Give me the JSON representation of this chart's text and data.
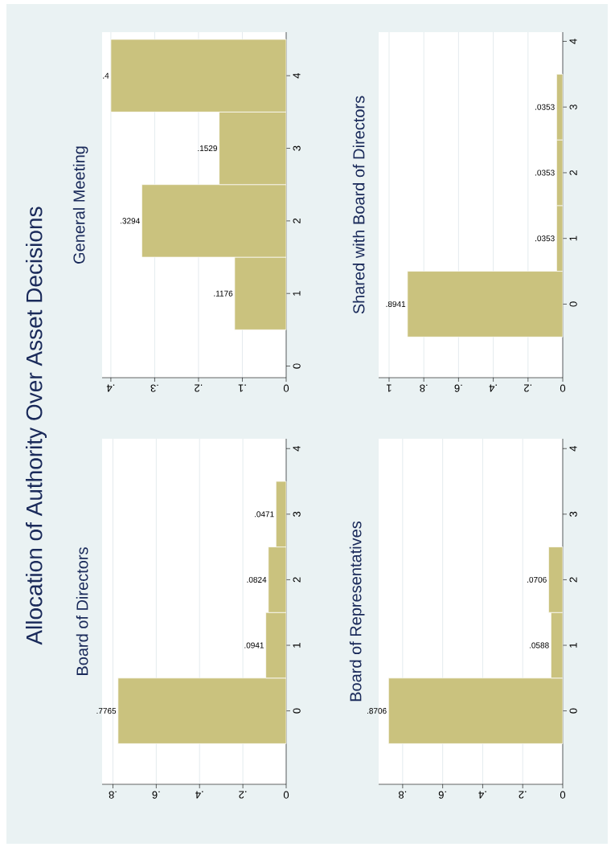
{
  "chart_data": [
    {
      "type": "other",
      "title": "Allocation of Authority Over Asset Decisions"
    },
    {
      "type": "histogram",
      "orientation": "horizontal",
      "title": "General Meeting",
      "bins": [
        0.5,
        1.5,
        2.5,
        3.5,
        4.5
      ],
      "values": [
        0.1176,
        0.3294,
        0.1529,
        0.4
      ],
      "value_labels": [
        ".1176",
        ".3294",
        ".1529",
        ".4"
      ],
      "color": "#cac27e",
      "xlim": [
        0.42,
        0
      ],
      "xticks": [
        {
          "value": 0,
          "label": "0"
        },
        {
          "value": 0.1,
          "label": ".1"
        },
        {
          "value": 0.2,
          "label": ".2"
        },
        {
          "value": 0.3,
          "label": ".3"
        },
        {
          "value": 0.4,
          "label": ".4"
        }
      ],
      "ylim": [
        -0.16,
        4.6
      ],
      "yticks": [
        0,
        1,
        2,
        3,
        4
      ],
      "grid": "x"
    },
    {
      "type": "histogram",
      "orientation": "horizontal",
      "title": "Shared with Board of Directors",
      "bins": [
        -0.5,
        0.5,
        1.5,
        2.5,
        3.5
      ],
      "values": [
        0.8941,
        0.0353,
        0.0353,
        0.0353
      ],
      "value_labels": [
        ".8941",
        ".0353",
        ".0353",
        ".0353"
      ],
      "color": "#cac27e",
      "xlim": [
        1.06,
        0
      ],
      "xticks": [
        0,
        {
          "value": 0.2,
          "label": ".2"
        },
        {
          "value": 0.4,
          "label": ".4"
        },
        {
          "value": 0.6,
          "label": ".6"
        },
        {
          "value": 0.8,
          "label": ".8"
        },
        1
      ],
      "ylim": [
        -1.12,
        4.14
      ],
      "yticks": [
        0,
        1,
        2,
        3,
        4
      ],
      "grid": "x"
    },
    {
      "type": "histogram",
      "orientation": "horizontal",
      "title": "Board of Directors",
      "bins": [
        -0.5,
        0.5,
        1.5,
        2.5,
        3.5
      ],
      "values": [
        0.7765,
        0.0941,
        0.0824,
        0.0471
      ],
      "value_labels": [
        ".7765",
        ".0941",
        ".0824",
        ".0471"
      ],
      "color": "#cac27e",
      "xlim": [
        0.85,
        0
      ],
      "xticks": [
        0,
        {
          "value": 0.2,
          "label": ".2"
        },
        {
          "value": 0.4,
          "label": ".4"
        },
        {
          "value": 0.6,
          "label": ".6"
        },
        {
          "value": 0.8,
          "label": ".8"
        }
      ],
      "ylim": [
        -1.12,
        4.15
      ],
      "yticks": [
        0,
        1,
        2,
        3,
        4
      ],
      "grid": "x"
    },
    {
      "type": "histogram",
      "orientation": "horizontal",
      "title": "Board of Representatives",
      "bins": [
        -0.5,
        0.5,
        1.5,
        2.5
      ],
      "values": [
        0.8706,
        0.0588,
        0.0706
      ],
      "value_labels": [
        ".8706",
        ".0588",
        ".0706"
      ],
      "color": "#cac27e",
      "xlim": [
        0.92,
        0
      ],
      "xticks": [
        0,
        {
          "value": 0.2,
          "label": ".2"
        },
        {
          "value": 0.4,
          "label": ".4"
        },
        {
          "value": 0.6,
          "label": ".6"
        },
        {
          "value": 0.8,
          "label": ".8"
        }
      ],
      "ylim": [
        -1.12,
        4.15
      ],
      "yticks": [
        0,
        1,
        2,
        3,
        4
      ],
      "grid": "x"
    }
  ]
}
